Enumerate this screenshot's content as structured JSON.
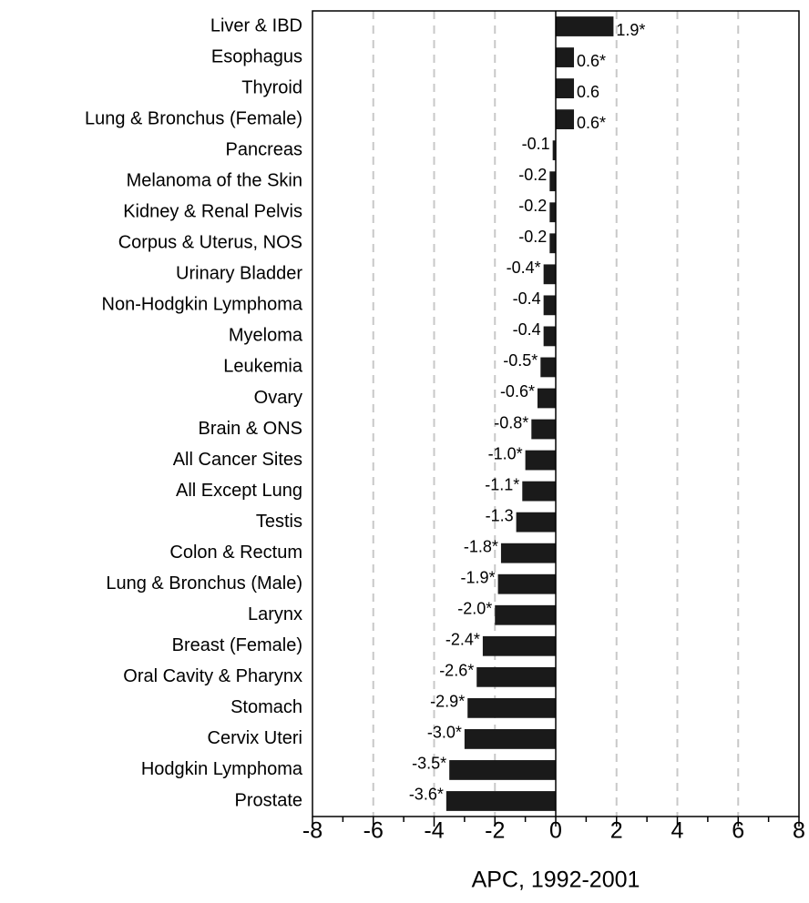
{
  "chart_data": {
    "type": "barh",
    "xlabel": "APC, 1992-2001",
    "categories": [
      "Liver & IBD",
      "Esophagus",
      "Thyroid",
      "Lung & Bronchus (Female)",
      "Pancreas",
      "Melanoma of the Skin",
      "Kidney & Renal Pelvis",
      "Corpus & Uterus, NOS",
      "Urinary Bladder",
      "Non-Hodgkin Lymphoma",
      "Myeloma",
      "Leukemia",
      "Ovary",
      "Brain & ONS",
      "All Cancer Sites",
      "All Except Lung",
      "Testis",
      "Colon & Rectum",
      "Lung & Bronchus (Male)",
      "Larynx",
      "Breast (Female)",
      "Oral Cavity & Pharynx",
      "Stomach",
      "Cervix Uteri",
      "Hodgkin Lymphoma",
      "Prostate"
    ],
    "values": [
      1.9,
      0.6,
      0.6,
      0.6,
      -0.1,
      -0.2,
      -0.2,
      -0.2,
      -0.4,
      -0.4,
      -0.4,
      -0.5,
      -0.6,
      -0.8,
      -1.0,
      -1.1,
      -1.3,
      -1.8,
      -1.9,
      -2.0,
      -2.4,
      -2.6,
      -2.9,
      -3.0,
      -3.5,
      -3.6
    ],
    "value_labels": [
      "1.9*",
      "0.6*",
      "0.6",
      "0.6*",
      "-0.1",
      "-0.2",
      "-0.2",
      "-0.2",
      "-0.4*",
      "-0.4",
      "-0.4",
      "-0.5*",
      "-0.6*",
      "-0.8*",
      "-1.0*",
      "-1.1*",
      "-1.3",
      "-1.8*",
      "-1.9*",
      "-2.0*",
      "-2.4*",
      "-2.6*",
      "-2.9*",
      "-3.0*",
      "-3.5*",
      "-3.6*"
    ],
    "color": "#1a1a1a",
    "xlim": [
      -8,
      8
    ],
    "xticks": [
      -8,
      -6,
      -4,
      -2,
      0,
      2,
      4,
      6,
      8
    ],
    "xminorticks": [
      -7,
      -5,
      -3,
      -1,
      1,
      3,
      5,
      7
    ],
    "grid": true
  }
}
